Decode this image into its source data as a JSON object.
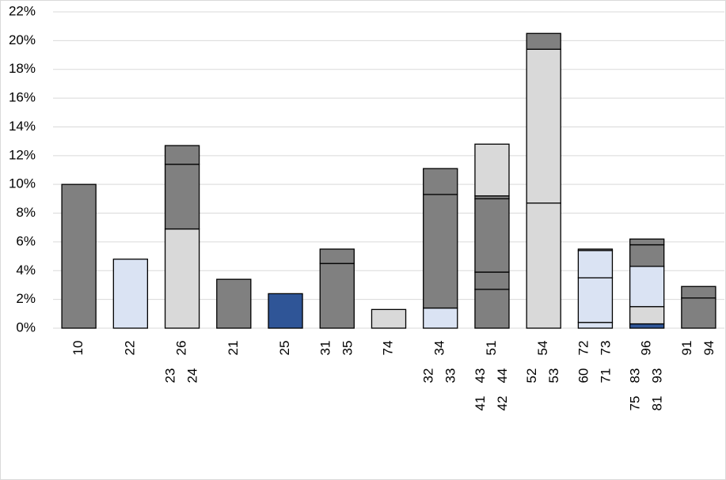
{
  "chart_data": {
    "type": "stacked-bar",
    "ylim": [
      0,
      22
    ],
    "yticks": [
      {
        "value": 0,
        "label": "0%"
      },
      {
        "value": 2,
        "label": "2%"
      },
      {
        "value": 4,
        "label": "4%"
      },
      {
        "value": 6,
        "label": "6%"
      },
      {
        "value": 8,
        "label": "8%"
      },
      {
        "value": 10,
        "label": "10%"
      },
      {
        "value": 12,
        "label": "12%"
      },
      {
        "value": 14,
        "label": "14%"
      },
      {
        "value": 16,
        "label": "16%"
      },
      {
        "value": 18,
        "label": "18%"
      },
      {
        "value": 20,
        "label": "20%"
      },
      {
        "value": 22,
        "label": "22%"
      }
    ],
    "grid": true,
    "bars": [
      {
        "labels": [
          "10"
        ],
        "values": [
          10.0
        ],
        "colors": [
          "#808080"
        ]
      },
      {
        "labels": [
          "22"
        ],
        "values": [
          4.8
        ],
        "colors": [
          "#dae3f3"
        ]
      },
      {
        "labels": [
          "23",
          "24",
          "26"
        ],
        "values": [
          6.9,
          4.5,
          1.3
        ],
        "colors": [
          "#d9d9d9",
          "#808080",
          "#808080"
        ]
      },
      {
        "labels": [
          "21"
        ],
        "values": [
          3.4
        ],
        "colors": [
          "#808080"
        ]
      },
      {
        "labels": [
          "25"
        ],
        "values": [
          2.4
        ],
        "colors": [
          "#2f5597"
        ]
      },
      {
        "labels": [
          "31",
          "35"
        ],
        "values": [
          4.5,
          1.0
        ],
        "colors": [
          "#808080",
          "#808080"
        ]
      },
      {
        "labels": [
          "74"
        ],
        "values": [
          1.3
        ],
        "colors": [
          "#d9d9d9"
        ]
      },
      {
        "labels": [
          "32",
          "33",
          "34"
        ],
        "values": [
          1.4,
          7.9,
          1.8
        ],
        "colors": [
          "#dae3f3",
          "#808080",
          "#808080"
        ]
      },
      {
        "labels": [
          "41",
          "42",
          "43",
          "44",
          "51"
        ],
        "values": [
          2.7,
          1.2,
          5.1,
          0.2,
          3.6
        ],
        "colors": [
          "#808080",
          "#808080",
          "#808080",
          "#808080",
          "#d9d9d9"
        ]
      },
      {
        "labels": [
          "52",
          "53",
          "54"
        ],
        "values": [
          8.7,
          10.7,
          1.1
        ],
        "colors": [
          "#d9d9d9",
          "#d9d9d9",
          "#808080"
        ]
      },
      {
        "labels": [
          "60",
          "71",
          "72",
          "73"
        ],
        "values": [
          0.4,
          3.1,
          1.9,
          0.1
        ],
        "colors": [
          "#dae3f3",
          "#dae3f3",
          "#dae3f3",
          "#808080"
        ]
      },
      {
        "labels": [
          "75",
          "81",
          "83",
          "93",
          "96"
        ],
        "values": [
          0.3,
          1.2,
          2.8,
          1.5,
          0.4
        ],
        "colors": [
          "#2f5597",
          "#d9d9d9",
          "#dae3f3",
          "#808080",
          "#808080"
        ]
      },
      {
        "labels": [
          "91",
          "94"
        ],
        "values": [
          2.1,
          0.8
        ],
        "colors": [
          "#808080",
          "#808080"
        ]
      }
    ]
  }
}
